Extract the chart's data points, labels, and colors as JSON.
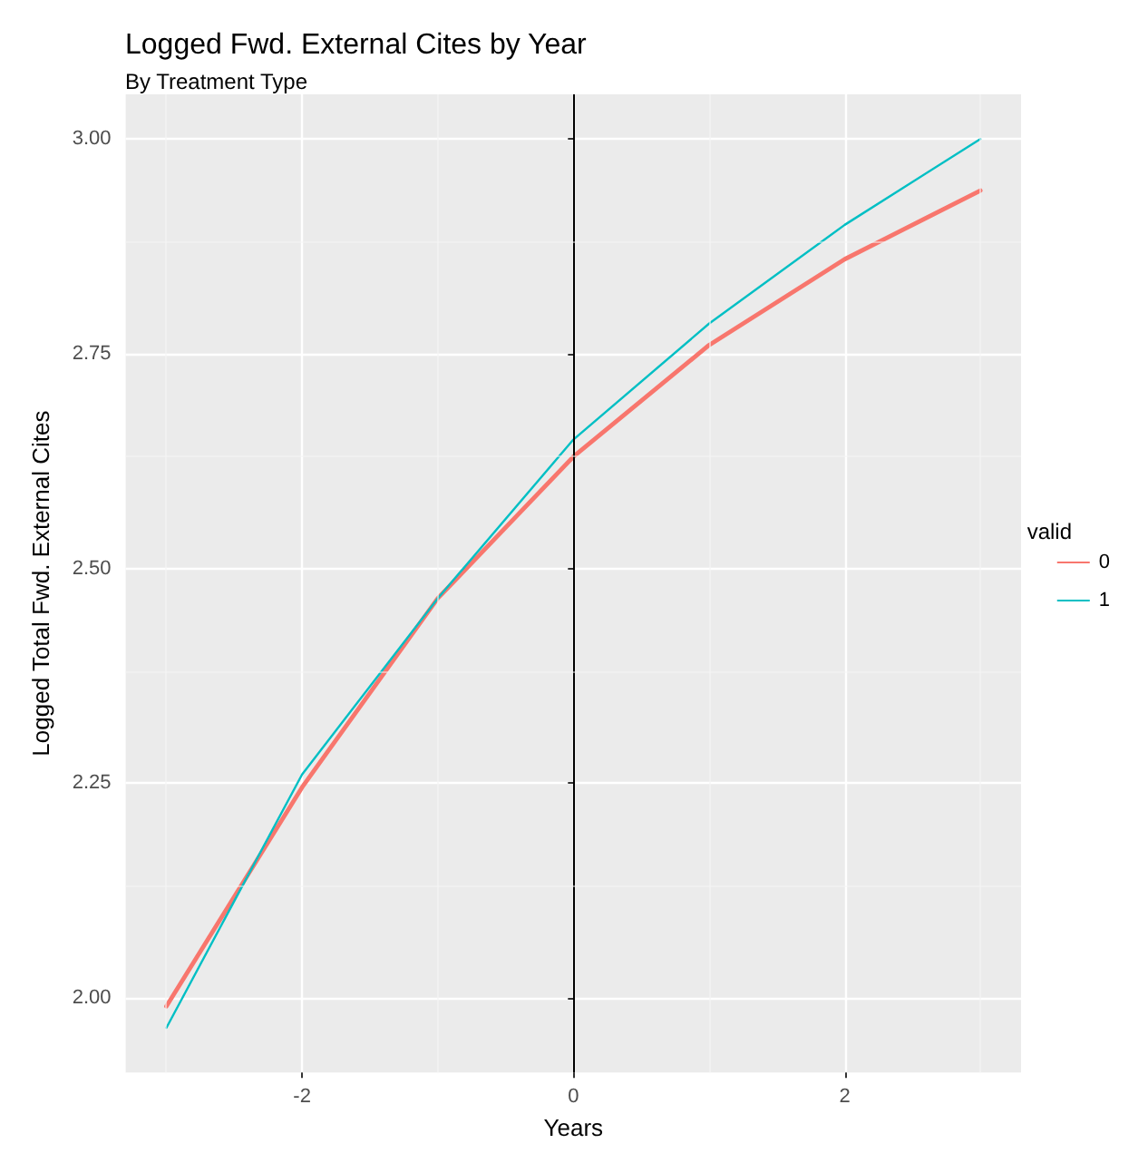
{
  "chart_data": {
    "type": "line",
    "title": "Logged Fwd. External Cites by Year",
    "subtitle": "By Treatment Type",
    "xlabel": "Years",
    "ylabel": "Logged Total Fwd. External Cites",
    "legend_title": "valid",
    "x": [
      -3,
      -2,
      -1,
      0,
      1,
      2,
      3
    ],
    "series": [
      {
        "name": "0",
        "color": "#f8766d",
        "values": [
          1.99,
          2.245,
          2.465,
          2.63,
          2.76,
          2.86,
          2.94
        ]
      },
      {
        "name": "1",
        "color": "#00bfc4",
        "values": [
          1.965,
          2.26,
          2.465,
          2.65,
          2.785,
          2.9,
          3.0
        ]
      }
    ],
    "xlim": [
      -3.3,
      3.3
    ],
    "xticks": [
      -2,
      0,
      2
    ],
    "ylim": [
      1.913,
      3.052
    ],
    "yticks": [
      {
        "value": 2,
        "label": "2.00"
      },
      {
        "value": 2.25,
        "label": "2.25"
      },
      {
        "value": 2.5,
        "label": "2.50"
      },
      {
        "value": 2.75,
        "label": "2.75"
      },
      {
        "value": 3,
        "label": "3.00"
      }
    ],
    "ref_lines": [
      {
        "axis": "x",
        "value": 0,
        "color": "#000000"
      }
    ],
    "grid": true,
    "legend": "right",
    "marker": "none",
    "line_style": "solid"
  }
}
